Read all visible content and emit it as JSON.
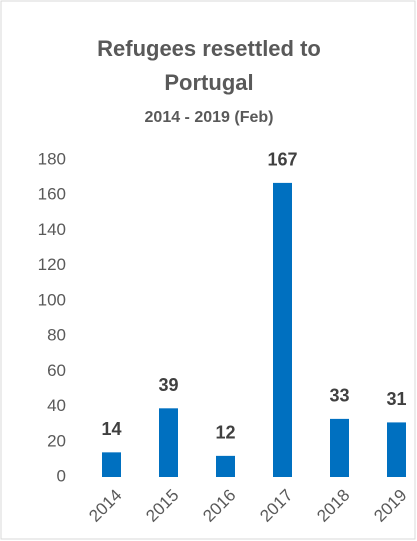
{
  "chart_data": {
    "type": "bar",
    "title": "Refugees resettled to Portugal",
    "subtitle": "2014 - 2019 (Feb)",
    "categories": [
      "2014",
      "2015",
      "2016",
      "2017",
      "2018",
      "2019"
    ],
    "values": [
      14,
      39,
      12,
      167,
      33,
      31
    ],
    "color": "#0070c0",
    "ylim": [
      0,
      180
    ],
    "yticks": [
      0,
      20,
      40,
      60,
      80,
      100,
      120,
      140,
      160,
      180
    ],
    "grid": false
  }
}
